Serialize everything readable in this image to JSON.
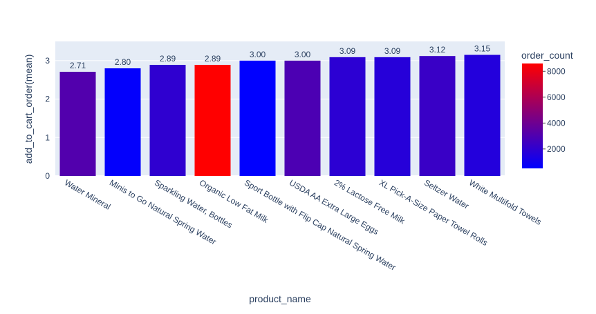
{
  "chart_data": {
    "type": "bar",
    "xlabel": "product_name",
    "ylabel": "add_to_cart_order(mean)",
    "ylim": [
      0,
      3.5
    ],
    "yticks": [
      0,
      1,
      2,
      3
    ],
    "grid": true,
    "categories": [
      "Water Mineral",
      "Minis to Go Natural Spring Water",
      "Sparkling Water, Bottles",
      "Organic Low Fat Milk",
      "Sport Bottle with Flip Cap Natural Spring Water",
      "USDA AA Extra Large Eggs",
      "2% Lactose Free Milk",
      "XL Pick-A-Size Paper Towel Rolls",
      "Seltzer Water",
      "White Multifold Towels"
    ],
    "values": [
      2.71,
      2.8,
      2.89,
      2.89,
      3.0,
      3.0,
      3.09,
      3.09,
      3.12,
      3.15
    ],
    "value_labels": [
      "2.71",
      "2.80",
      "2.89",
      "2.89",
      "3.00",
      "3.00",
      "3.09",
      "3.09",
      "3.12",
      "3.15"
    ],
    "color_values": [
      3100,
      600,
      2000,
      8600,
      500,
      2900,
      1900,
      1700,
      2300,
      1600
    ],
    "colorbar": {
      "title": "order_count",
      "range": [
        500,
        8600
      ],
      "ticks": [
        2000,
        4000,
        6000,
        8000
      ],
      "color_low": "#0000ff",
      "color_high": "#ff0000"
    },
    "colors": {
      "plot_bg": "#e5ecf6",
      "grid": "#ffffff",
      "text": "#2a3f5f"
    }
  }
}
